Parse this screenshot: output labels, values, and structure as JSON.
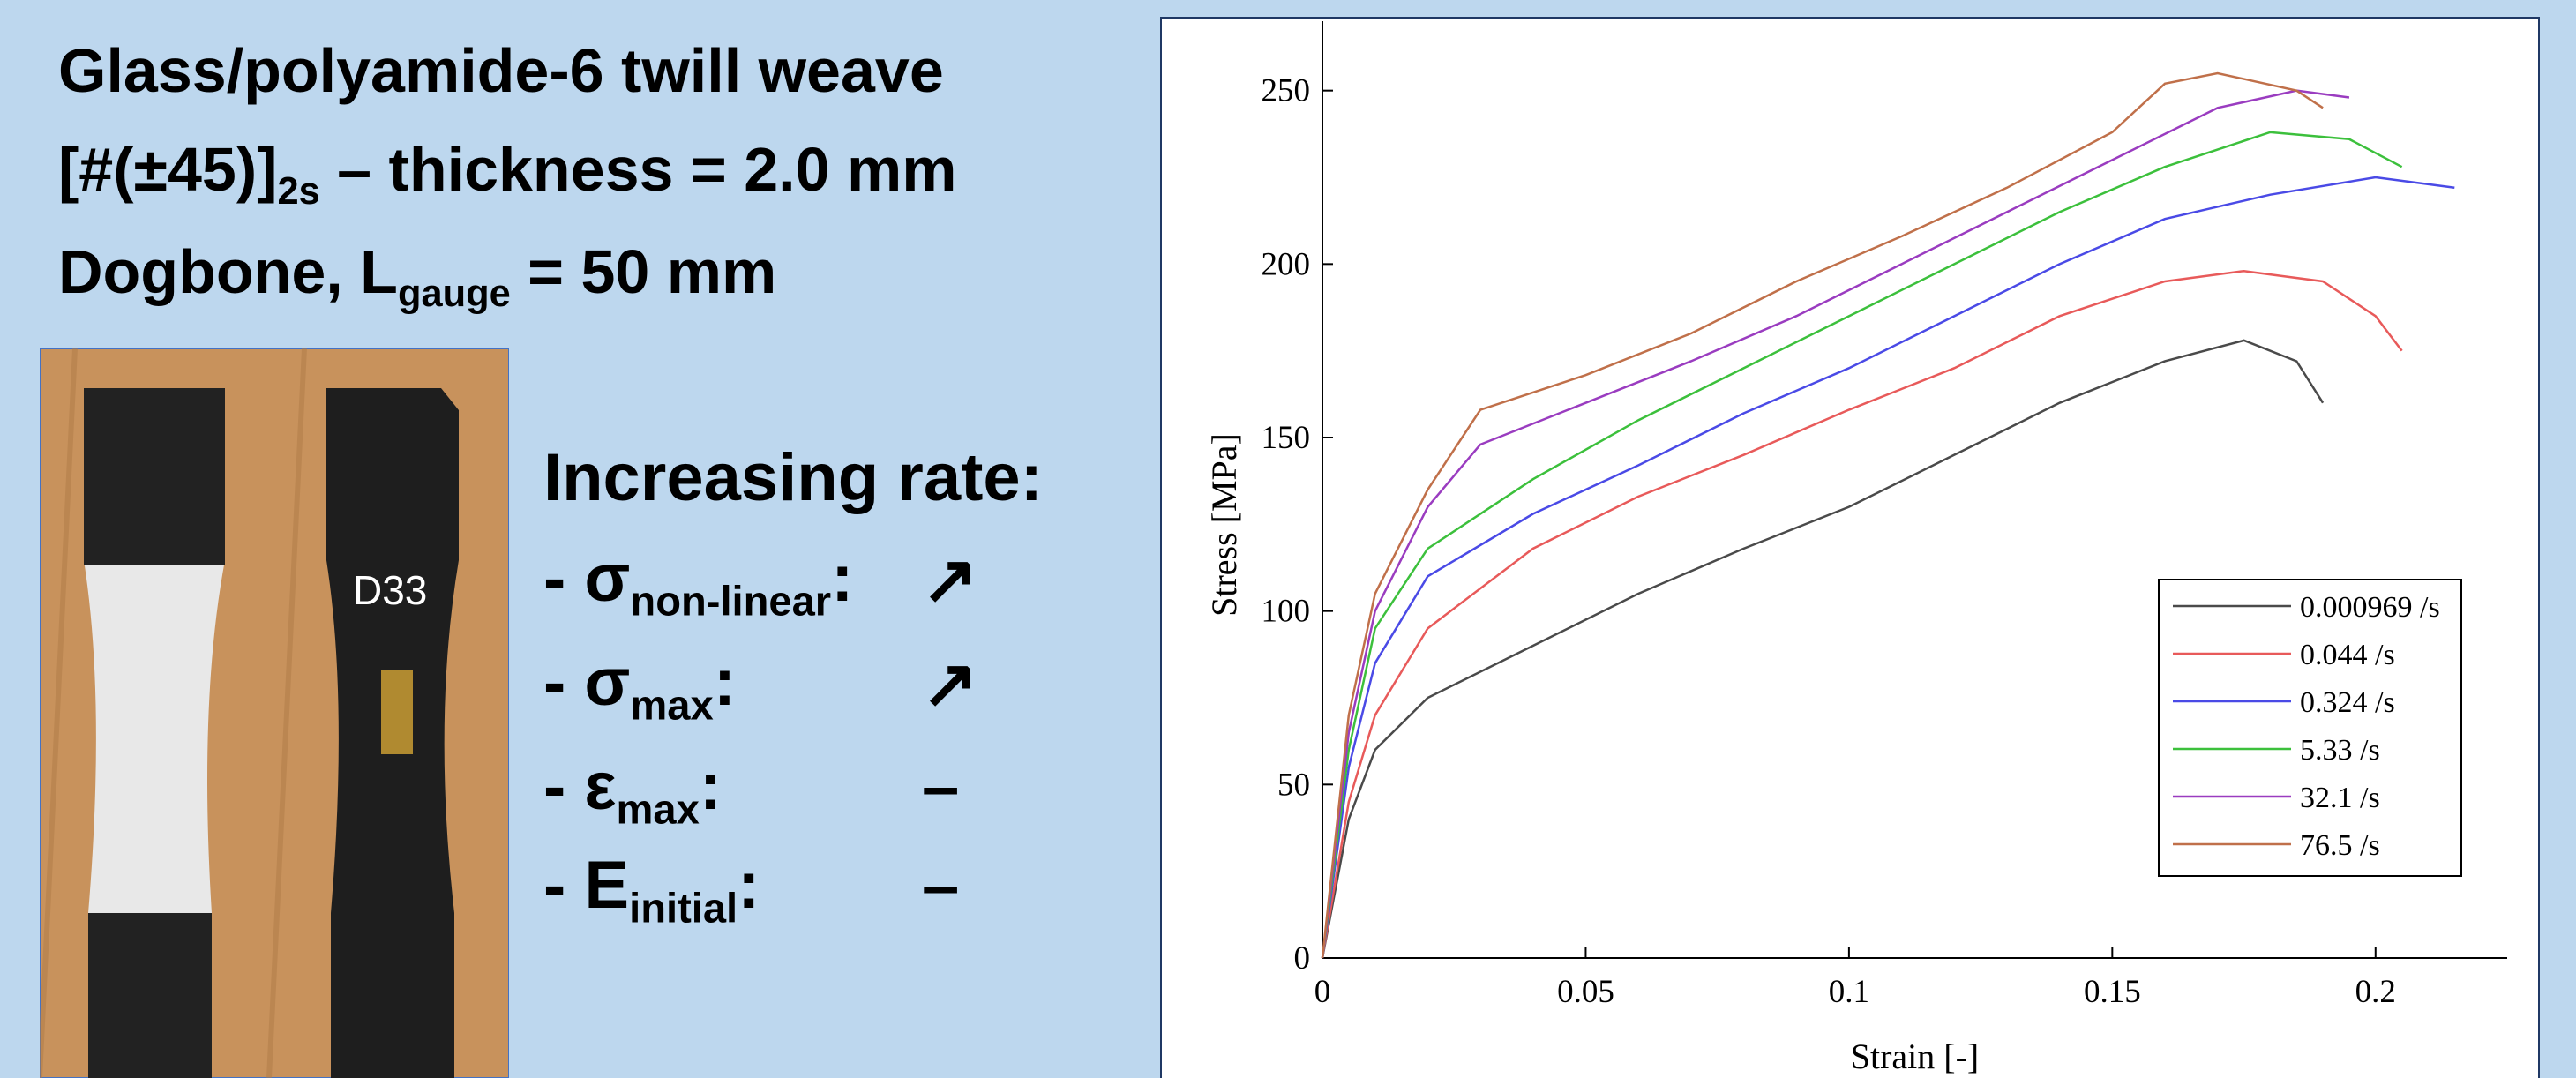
{
  "slide": {
    "title_lines": [
      {
        "text": "Glass/polyamide-6 twill weave"
      },
      {
        "text": "[#(±45)]",
        "sub": "2s",
        "after": " – thickness = 2.0 mm"
      },
      {
        "text": "Dogbone, L",
        "sub": "gauge",
        "after": " = 50 mm"
      }
    ],
    "photo_label": "D33",
    "rate_heading": "Increasing rate:",
    "rate_items": [
      {
        "text": "- σ",
        "sub": "non-linear",
        "after": ":",
        "trend": "↗"
      },
      {
        "text": "- σ",
        "sub": "max",
        "after": ":",
        "trend": "↗"
      },
      {
        "text": "- ε",
        "sub": "max",
        "after": ":",
        "trend": "–"
      },
      {
        "text": "- E",
        "sub": "initial",
        "after": ":",
        "trend": "–"
      }
    ]
  },
  "chart_data": {
    "type": "line",
    "x_label": "Strain [-]",
    "y_label": "Stress [MPa]",
    "xlim": [
      0,
      0.225
    ],
    "xticks": [
      0,
      0.05,
      0.1,
      0.15,
      0.2
    ],
    "ylim": [
      0,
      270
    ],
    "yticks": [
      0,
      50,
      100,
      150,
      200,
      250
    ],
    "legend": "lower right",
    "series": [
      {
        "name": "0.000969 /s",
        "color": "#4a4a4a",
        "x": [
          0,
          0.005,
          0.01,
          0.02,
          0.04,
          0.06,
          0.08,
          0.1,
          0.12,
          0.14,
          0.16,
          0.175,
          0.185,
          0.19
        ],
        "values": [
          0,
          40,
          60,
          75,
          90,
          105,
          118,
          130,
          145,
          160,
          172,
          178,
          172,
          160
        ]
      },
      {
        "name": "0.044 /s",
        "color": "#e85a5a",
        "x": [
          0,
          0.005,
          0.01,
          0.02,
          0.04,
          0.06,
          0.08,
          0.1,
          0.12,
          0.14,
          0.16,
          0.175,
          0.19,
          0.2,
          0.205
        ],
        "values": [
          0,
          45,
          70,
          95,
          118,
          133,
          145,
          158,
          170,
          185,
          195,
          198,
          195,
          185,
          175
        ]
      },
      {
        "name": "0.324 /s",
        "color": "#4a4ae6",
        "x": [
          0,
          0.005,
          0.01,
          0.02,
          0.04,
          0.06,
          0.08,
          0.1,
          0.12,
          0.14,
          0.16,
          0.18,
          0.2,
          0.215
        ],
        "values": [
          0,
          55,
          85,
          110,
          128,
          142,
          157,
          170,
          185,
          200,
          213,
          220,
          225,
          222
        ]
      },
      {
        "name": "5.33 /s",
        "color": "#3cc03c",
        "x": [
          0,
          0.005,
          0.01,
          0.02,
          0.04,
          0.06,
          0.08,
          0.1,
          0.12,
          0.14,
          0.16,
          0.18,
          0.195,
          0.205
        ],
        "values": [
          0,
          60,
          95,
          118,
          138,
          155,
          170,
          185,
          200,
          215,
          228,
          238,
          236,
          228
        ]
      },
      {
        "name": "32.1 /s",
        "color": "#9a3cc0",
        "x": [
          0,
          0.005,
          0.01,
          0.02,
          0.03,
          0.05,
          0.07,
          0.09,
          0.11,
          0.13,
          0.15,
          0.17,
          0.185,
          0.195
        ],
        "values": [
          0,
          65,
          100,
          130,
          148,
          160,
          172,
          185,
          200,
          215,
          230,
          245,
          250,
          248
        ]
      },
      {
        "name": "76.5 /s",
        "color": "#c0704a",
        "x": [
          0,
          0.005,
          0.01,
          0.02,
          0.03,
          0.05,
          0.07,
          0.09,
          0.11,
          0.13,
          0.15,
          0.16,
          0.17,
          0.185,
          0.19
        ],
        "values": [
          0,
          70,
          105,
          135,
          158,
          168,
          180,
          195,
          208,
          222,
          238,
          252,
          255,
          250,
          245
        ]
      }
    ]
  }
}
